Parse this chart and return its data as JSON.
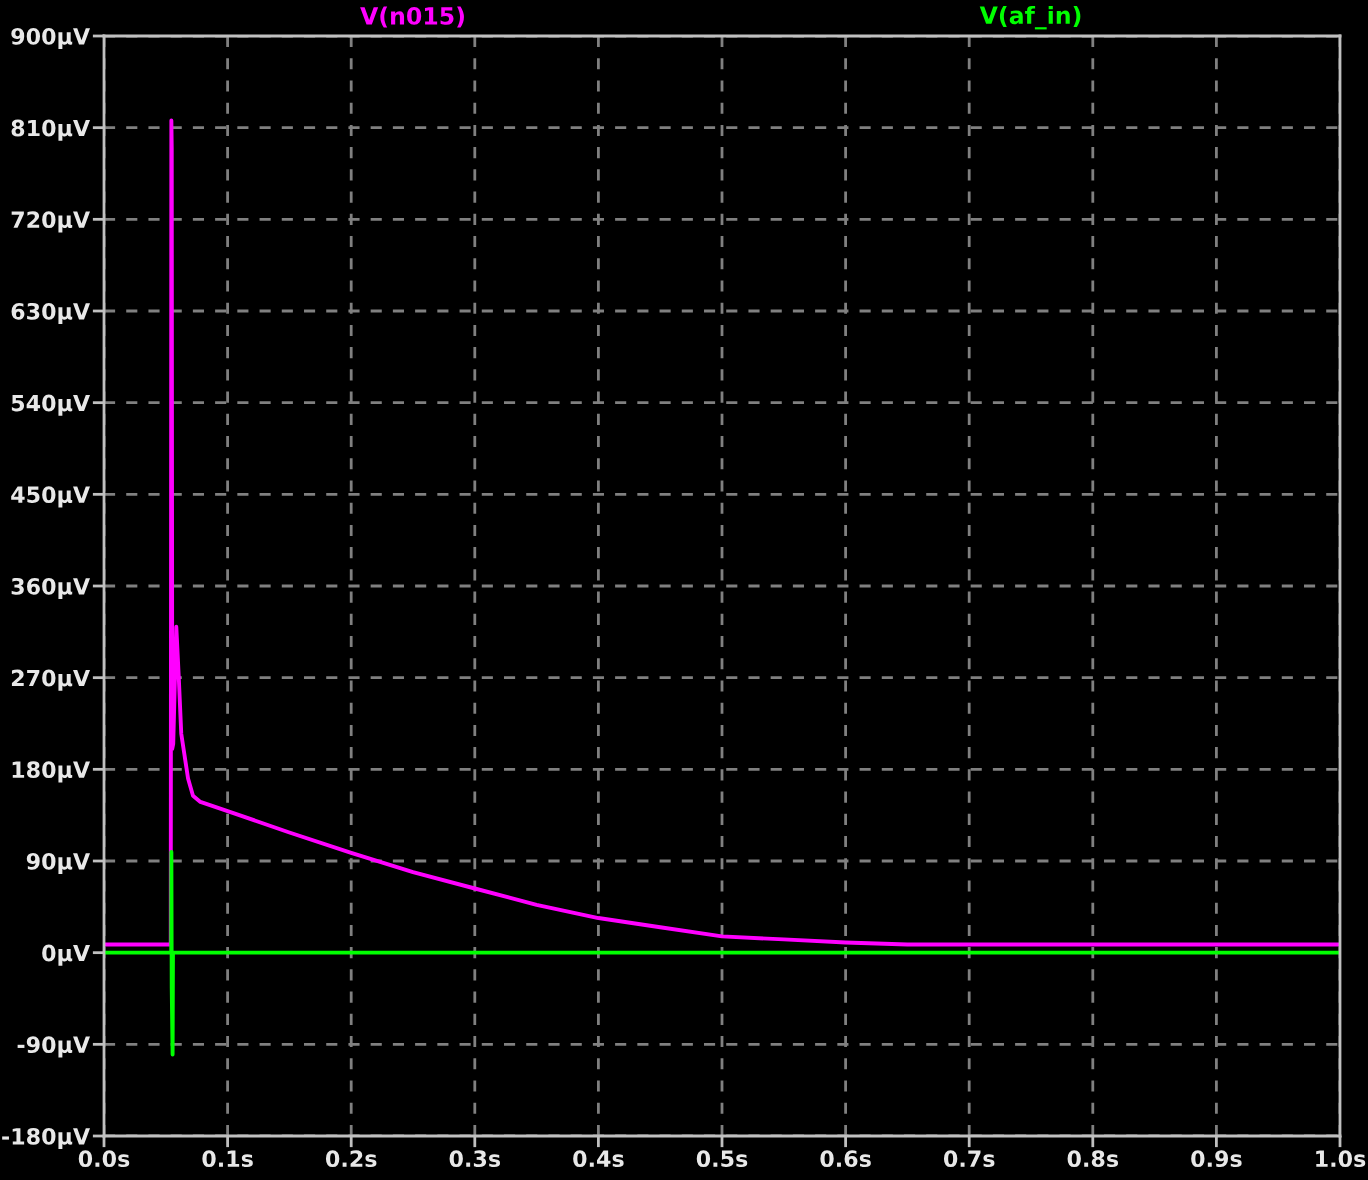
{
  "chart_data": {
    "type": "line",
    "xlim": [
      0,
      1.0
    ],
    "xticks": [
      {
        "value": 0,
        "label": "0.0s"
      },
      {
        "value": 0.1,
        "label": "0.1s"
      },
      {
        "value": 0.2,
        "label": "0.2s"
      },
      {
        "value": 0.3,
        "label": "0.3s"
      },
      {
        "value": 0.4,
        "label": "0.4s"
      },
      {
        "value": 0.5,
        "label": "0.5s"
      },
      {
        "value": 0.6,
        "label": "0.6s"
      },
      {
        "value": 0.7,
        "label": "0.7s"
      },
      {
        "value": 0.8,
        "label": "0.8s"
      },
      {
        "value": 0.9,
        "label": "0.9s"
      },
      {
        "value": 1.0,
        "label": "1.0s"
      }
    ],
    "ylim": [
      -180,
      900
    ],
    "yticks": [
      {
        "value": -180,
        "label": "-180µV"
      },
      {
        "value": -90,
        "label": "-90µV"
      },
      {
        "value": 0,
        "label": "0µV"
      },
      {
        "value": 90,
        "label": "90µV"
      },
      {
        "value": 180,
        "label": "180µV"
      },
      {
        "value": 270,
        "label": "270µV"
      },
      {
        "value": 360,
        "label": "360µV"
      },
      {
        "value": 450,
        "label": "450µV"
      },
      {
        "value": 540,
        "label": "540µV"
      },
      {
        "value": 630,
        "label": "630µV"
      },
      {
        "value": 720,
        "label": "720µV"
      },
      {
        "value": 810,
        "label": "810µV"
      },
      {
        "value": 900,
        "label": "900µV"
      }
    ],
    "grid": true,
    "legend": "top",
    "line_style": "solid",
    "series": [
      {
        "name": "V(n015)",
        "color": "#ff00ff",
        "x": [
          0,
          0.054,
          0.0545,
          0.0548,
          0.0552,
          0.056,
          0.0585,
          0.0605,
          0.0625,
          0.065,
          0.068,
          0.072,
          0.078,
          0.1,
          0.15,
          0.2,
          0.25,
          0.3,
          0.35,
          0.4,
          0.45,
          0.5,
          0.55,
          0.6,
          0.65,
          1.0
        ],
        "values": [
          8,
          8,
          817,
          790,
          200,
          205,
          320,
          270,
          215,
          195,
          171,
          154,
          148,
          139,
          118,
          98,
          79,
          63,
          47,
          34,
          25,
          16,
          13,
          10,
          8,
          8
        ]
      },
      {
        "name": "V(af_in)",
        "color": "#00ff00",
        "x": [
          0,
          0.0544,
          0.0545,
          0.0548,
          0.0555,
          0.0558,
          1.0
        ],
        "values": [
          0,
          0,
          99,
          -35,
          -100,
          0,
          0
        ]
      }
    ]
  }
}
